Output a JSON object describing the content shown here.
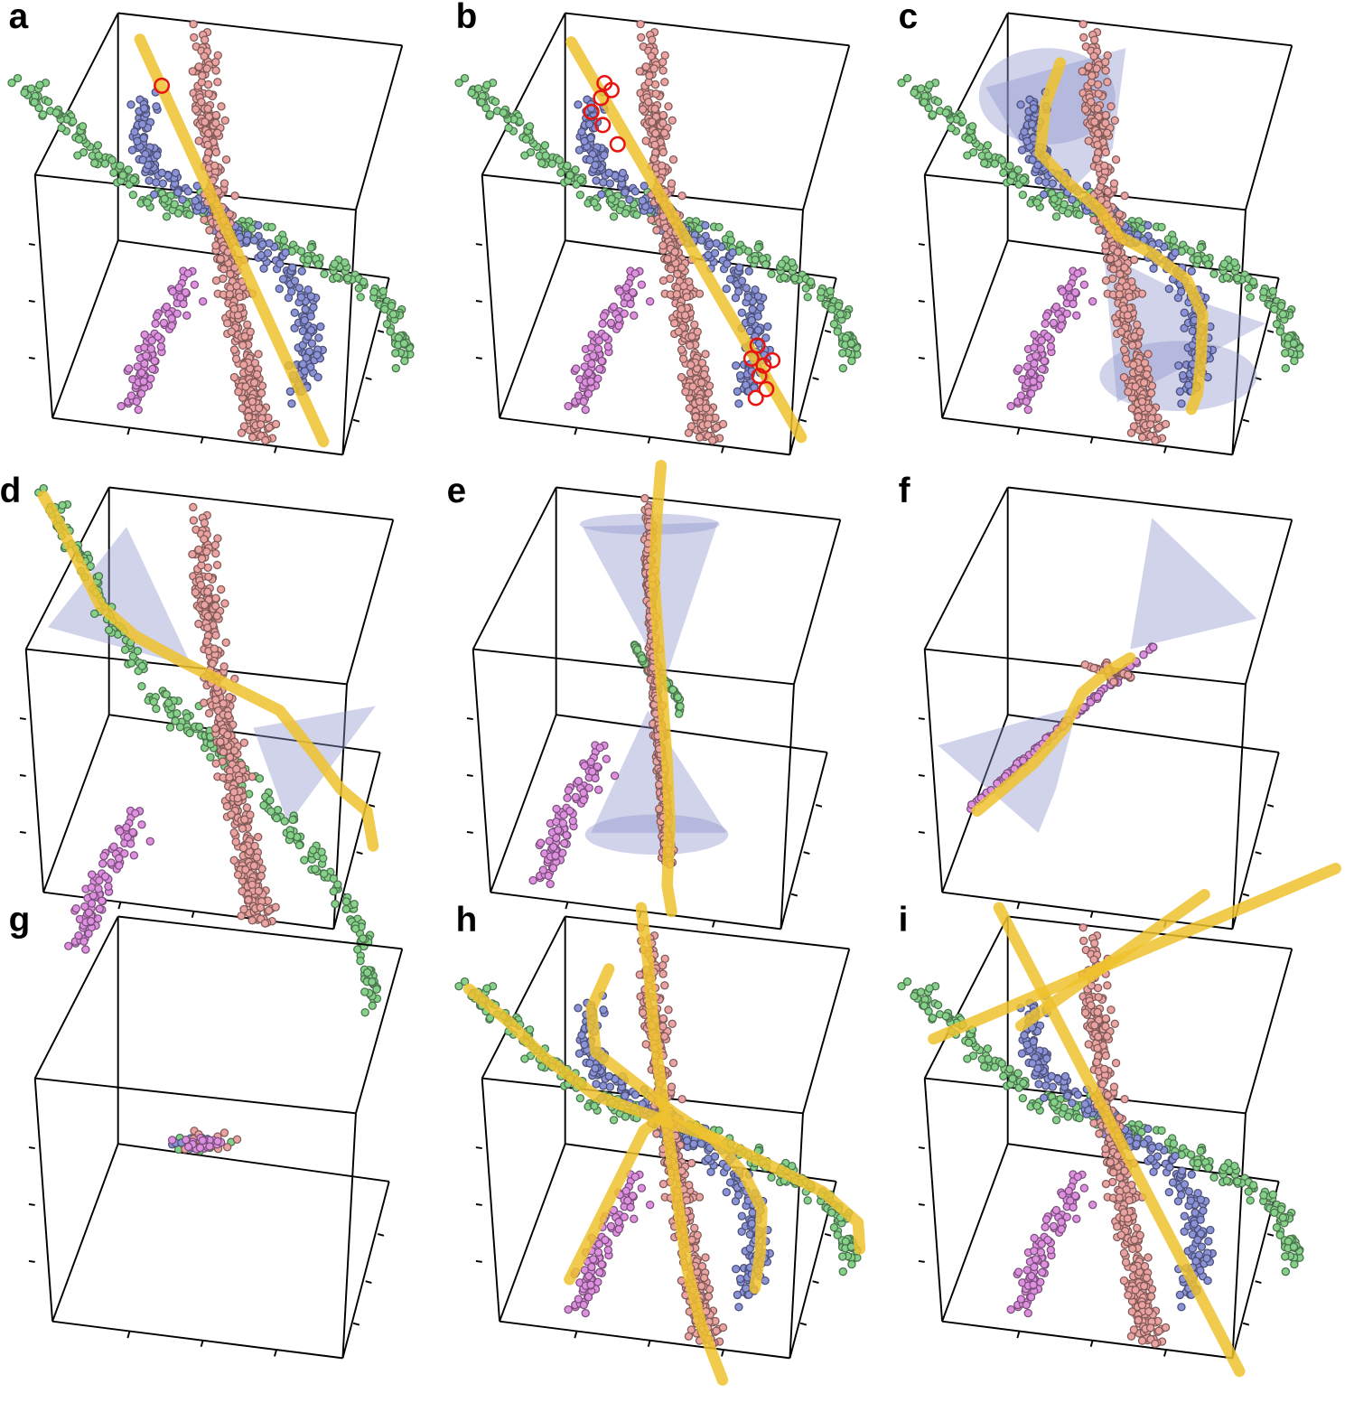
{
  "figure": {
    "panels": [
      {
        "id": "a",
        "label": "a",
        "points": "full",
        "trajectories": [
          "straight-a"
        ],
        "cones": [],
        "highlight": "single"
      },
      {
        "id": "b",
        "label": "b",
        "points": "full",
        "trajectories": [
          "straight-b"
        ],
        "cones": [],
        "highlight": "cluster"
      },
      {
        "id": "c",
        "label": "c",
        "points": "full",
        "trajectories": [
          "s-curve-blue"
        ],
        "cones": [
          "blue-cone"
        ],
        "highlight": "none"
      },
      {
        "id": "d",
        "label": "d",
        "points": "green-pink",
        "trajectories": [
          "green-curve"
        ],
        "cones": [
          "green-cone"
        ],
        "highlight": "none"
      },
      {
        "id": "e",
        "label": "e",
        "points": "pink-vertical",
        "trajectories": [
          "pink-curve"
        ],
        "cones": [
          "pink-cone"
        ],
        "highlight": "none"
      },
      {
        "id": "f",
        "label": "f",
        "points": "violet-diagonal",
        "trajectories": [
          "violet-curve"
        ],
        "cones": [
          "violet-cone"
        ],
        "highlight": "none"
      },
      {
        "id": "g",
        "label": "g",
        "points": "collapsed",
        "trajectories": [],
        "cones": [],
        "highlight": "none"
      },
      {
        "id": "h",
        "label": "h",
        "points": "full",
        "trajectories": [
          "all-curves"
        ],
        "cones": [],
        "highlight": "none"
      },
      {
        "id": "i",
        "label": "i",
        "points": "full",
        "trajectories": [
          "straight-axes"
        ],
        "cones": [],
        "highlight": "none"
      }
    ],
    "colors": {
      "green": "#86d18a",
      "blue": "#8a92d8",
      "pink": "#eaa3a0",
      "violet": "#de8fe0",
      "cone": "#8e96cc",
      "trajectory": "#efc22e",
      "highlight": "#e8140f",
      "box": "#000000"
    },
    "series": [
      "green-cluster",
      "blue-cluster",
      "pink-cluster",
      "violet-cluster"
    ]
  }
}
